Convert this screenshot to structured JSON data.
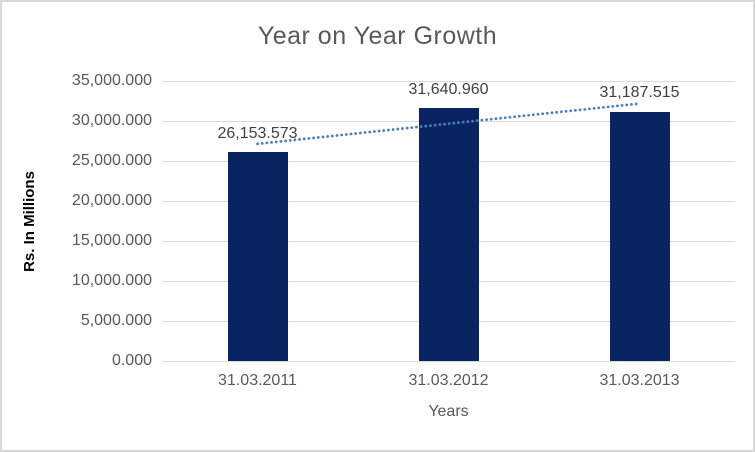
{
  "chart_data": {
    "type": "bar",
    "title": "Year on Year Growth",
    "xlabel": "Years",
    "ylabel": "Rs. In Millions",
    "categories": [
      "31.03.2011",
      "31.03.2012",
      "31.03.2013"
    ],
    "values": [
      26153.573,
      31640.96,
      31187.515
    ],
    "data_labels": [
      "26,153.573",
      "31,640.960",
      "31,187.515"
    ],
    "ylim": [
      0,
      35000
    ],
    "yticks": [
      {
        "value": 0,
        "label": "0.000"
      },
      {
        "value": 5000,
        "label": "5,000.000"
      },
      {
        "value": 10000,
        "label": "10,000.000"
      },
      {
        "value": 15000,
        "label": "15,000.000"
      },
      {
        "value": 20000,
        "label": "20,000.000"
      },
      {
        "value": 25000,
        "label": "25,000.000"
      },
      {
        "value": 30000,
        "label": "30,000.000"
      },
      {
        "value": 35000,
        "label": "35,000.000"
      }
    ],
    "grid": "horizontal",
    "legend": "none",
    "trendline": {
      "type": "linear",
      "style": "dotted",
      "color": "#4a7ebd"
    },
    "colors": {
      "bar": "#0a2462",
      "gridline": "#d9d9d9",
      "axis_text": "#595959",
      "label_text": "#404040",
      "title_text": "#595959",
      "border": "#d9d9d9"
    }
  }
}
